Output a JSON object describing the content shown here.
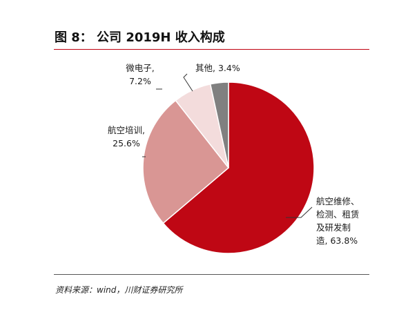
{
  "figure": {
    "title": "图 8：  公司 2019H 收入构成",
    "source": "资料来源：wind，川财证券研究所"
  },
  "chart_data": {
    "type": "pie",
    "title": "公司 2019H 收入构成",
    "unit": "%",
    "slices": [
      {
        "name": "航空维修、检测、租赁及研发制造",
        "value": 63.8,
        "color": "#bf0714",
        "label_lines": [
          "航空维修、",
          "检测、租赁",
          "及研发制",
          "造, 63.8%"
        ]
      },
      {
        "name": "航空培训",
        "value": 25.6,
        "color": "#d99694",
        "label_lines": [
          "航空培训,",
          "25.6%"
        ]
      },
      {
        "name": "微电子",
        "value": 7.2,
        "color": "#f3dcdc",
        "label_lines": [
          "微电子,",
          "7.2%"
        ]
      },
      {
        "name": "其他",
        "value": 3.4,
        "color": "#808080",
        "label_lines": [
          "其他, 3.4%"
        ]
      }
    ],
    "start_position": "12 o'clock",
    "direction": "clockwise",
    "legend": "none",
    "data_labels": "outside with leader lines"
  }
}
